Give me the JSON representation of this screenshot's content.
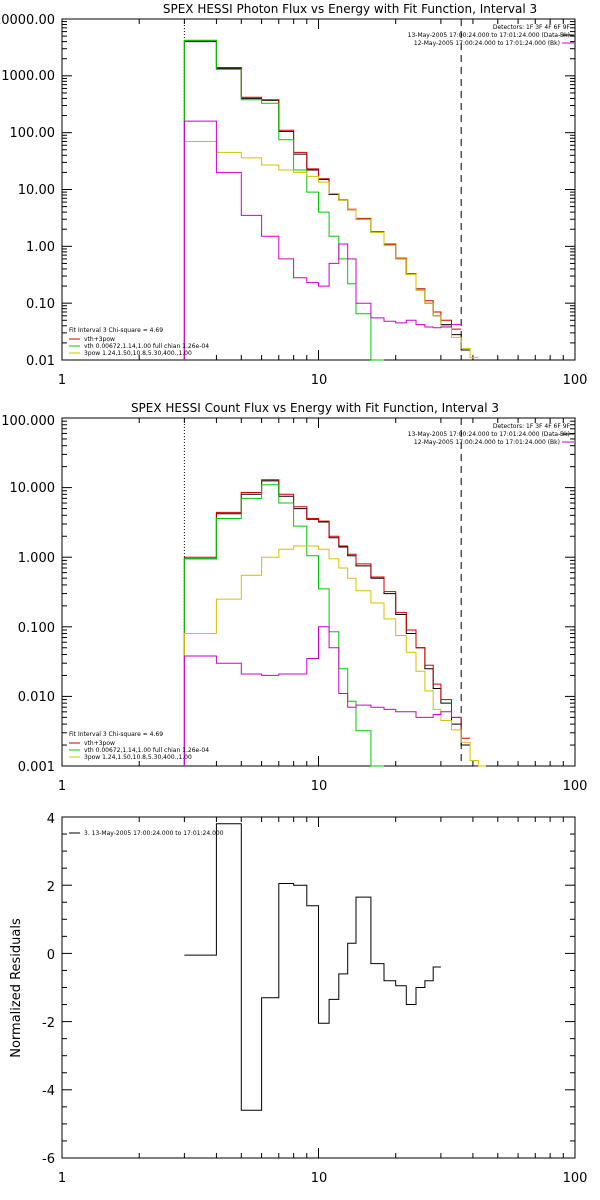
{
  "chart_data": [
    {
      "type": "line",
      "title": "SPEX HESSI Photon Flux vs Energy with Fit Function, Interval 3",
      "xscale": "log",
      "yscale": "log",
      "xlim": [
        1,
        100
      ],
      "ylim": [
        0.01,
        10000
      ],
      "x_tick_labels": [
        "1",
        "10",
        "100"
      ],
      "y_tick_labels": [
        "0.01",
        "0.10",
        "1.00",
        "10.00",
        "100.00",
        "1000.00",
        "10000.00"
      ],
      "header": [
        "Detectors: 1F 3F 4F 6F 9F",
        "13-May-2005 17:00:24.000 to 17:01:24.000 (Data-Bk)",
        "12-May-2005 17:00:24.000 to 17:01:24.000 (Bk)"
      ],
      "annotation": [
        "Fit Interval 3   Chi-square = 4.69",
        "vth+3pow",
        "vth 0.00672,1.14,1.00  full chian 1.26e-04",
        "3pow 1.24,1.50,10.8,5.30,400.,1.00"
      ],
      "vlines": [
        {
          "x": 3,
          "style": "dotted"
        },
        {
          "x": 36,
          "style": "dashed"
        }
      ],
      "edges": [
        3,
        4,
        5,
        6,
        7,
        8,
        9,
        10,
        11,
        12,
        13,
        14,
        16,
        18,
        20,
        22,
        24,
        26,
        28,
        30,
        33,
        36,
        39,
        42,
        45
      ],
      "series": [
        {
          "name": "Data-Bk",
          "color": "#000000",
          "values": [
            4000,
            1350,
            400,
            370,
            105,
            42,
            22,
            15,
            8.2,
            6.5,
            4.4,
            3,
            1.75,
            1.05,
            0.6,
            0.32,
            0.17,
            0.1,
            0.06,
            0.042,
            0.028,
            0.015,
            null,
            null
          ]
        },
        {
          "name": "vth+3pow",
          "color": "#cc0000",
          "values": [
            4200,
            1400,
            420,
            380,
            110,
            45,
            23,
            15.5,
            8.5,
            6.6,
            4.5,
            3.1,
            1.8,
            1.1,
            0.62,
            0.33,
            0.18,
            0.11,
            0.07,
            0.05,
            0.035,
            null,
            null,
            null
          ]
        },
        {
          "name": "vth",
          "color": "#00c800",
          "values": [
            4200,
            1300,
            380,
            330,
            75,
            22,
            9,
            4,
            1.5,
            0.6,
            0.22,
            0.065,
            0.01,
            null,
            null,
            null,
            null,
            null,
            null,
            null,
            null,
            null,
            null,
            null
          ]
        },
        {
          "name": "3pow",
          "color": "#d4c000",
          "values": [
            70,
            45,
            36,
            27,
            22,
            20,
            17,
            13.5,
            8.5,
            6.5,
            4.4,
            3,
            1.75,
            1.05,
            0.6,
            0.32,
            0.17,
            0.1,
            0.06,
            0.04,
            0.025,
            0.016,
            0.011,
            null
          ]
        },
        {
          "name": "Bk",
          "color": "#cc00cc",
          "values": [
            160,
            20,
            3.5,
            1.5,
            0.6,
            0.28,
            0.23,
            0.2,
            0.5,
            1.1,
            0.6,
            0.1,
            0.055,
            0.048,
            0.045,
            0.05,
            0.042,
            0.038,
            0.037,
            0.038,
            0.042,
            null,
            null,
            null
          ]
        }
      ]
    },
    {
      "type": "line",
      "title": "SPEX HESSI Count Flux vs Energy with Fit Function, Interval 3",
      "xscale": "log",
      "yscale": "log",
      "xlim": [
        1,
        100
      ],
      "ylim": [
        0.001,
        100
      ],
      "x_tick_labels": [
        "1",
        "10",
        "100"
      ],
      "y_tick_labels": [
        "0.001",
        "0.010",
        "0.100",
        "1.000",
        "10.000",
        "100.000"
      ],
      "header": [
        "Detectors: 1F 3F 4F 6F 9F",
        "13-May-2005 17:00:24.000 to 17:01:24.000 (Data-Bk)",
        "12-May-2005 17:00:24.000 to 17:01:24.000 (Bk)"
      ],
      "annotation": [
        "Fit Interval 3   Chi-square = 4.69",
        "vth+3pow",
        "vth 0.00672,1.14,1.00  full chian 1.26e-04",
        "3pow 1.24,1.50,10.8,5.30,400.,1.00"
      ],
      "vlines": [
        {
          "x": 3,
          "style": "dotted"
        },
        {
          "x": 36,
          "style": "dashed"
        }
      ],
      "edges": [
        3,
        4,
        5,
        6,
        7,
        8,
        9,
        10,
        11,
        12,
        13,
        14,
        16,
        18,
        20,
        22,
        24,
        26,
        28,
        30,
        33,
        36,
        39,
        42,
        45
      ],
      "series": [
        {
          "name": "Data-Bk",
          "color": "#000000",
          "values": [
            0.95,
            4.2,
            8,
            12.5,
            7.5,
            5,
            3.5,
            3.2,
            1.9,
            1.4,
            1.05,
            0.75,
            0.5,
            0.3,
            0.15,
            0.08,
            0.05,
            0.025,
            0.013,
            0.008,
            0.004,
            0.002,
            null,
            null
          ]
        },
        {
          "name": "vth+3pow",
          "color": "#cc0000",
          "values": [
            1.0,
            4.4,
            8.5,
            13,
            8,
            5.3,
            3.6,
            3.3,
            2,
            1.45,
            1.1,
            0.8,
            0.52,
            0.32,
            0.16,
            0.09,
            0.05,
            0.028,
            0.015,
            0.009,
            0.005,
            0.0025,
            null,
            null
          ]
        },
        {
          "name": "vth",
          "color": "#00c800",
          "values": [
            0.95,
            3.6,
            7,
            11,
            6,
            2.8,
            1.05,
            0.35,
            0.085,
            0.025,
            0.0085,
            0.0032,
            0.001,
            null,
            null,
            null,
            null,
            null,
            null,
            null,
            null,
            null,
            null,
            null
          ]
        },
        {
          "name": "3pow",
          "color": "#d4c000",
          "values": [
            0.08,
            0.25,
            0.55,
            1.0,
            1.3,
            1.45,
            1.45,
            1.3,
            0.95,
            0.7,
            0.5,
            0.33,
            0.22,
            0.13,
            0.075,
            0.043,
            0.023,
            0.012,
            0.0065,
            0.0045,
            0.0033,
            0.0022,
            0.0012,
            0.001
          ]
        },
        {
          "name": "Bk",
          "color": "#cc00cc",
          "values": [
            0.038,
            0.03,
            0.021,
            0.02,
            0.021,
            0.021,
            0.035,
            0.1,
            0.05,
            0.011,
            0.007,
            0.0075,
            0.007,
            0.0065,
            0.006,
            0.006,
            0.005,
            0.005,
            0.0055,
            0.006,
            0.005,
            null,
            null,
            null
          ]
        }
      ]
    },
    {
      "type": "line",
      "title": "",
      "xscale": "log",
      "yscale": "linear",
      "xlim": [
        1,
        100
      ],
      "ylim": [
        -6,
        4
      ],
      "x_tick_labels": [
        "1",
        "10",
        "100"
      ],
      "y_tick_labels": [
        "-6",
        "-4",
        "-2",
        "0",
        "2",
        "4"
      ],
      "ylabel": "Normalized Residuals",
      "legend": [
        "3. 13-May-2005 17:00:24.000 to 17:01:24.000"
      ],
      "edges": [
        3,
        4,
        5,
        6,
        7,
        8,
        9,
        10,
        11,
        12,
        13,
        14,
        16,
        18,
        20,
        22,
        24,
        26,
        28,
        30,
        33,
        36
      ],
      "series": [
        {
          "name": "residuals",
          "color": "#000000",
          "values": [
            -0.05,
            3.8,
            -4.6,
            -1.3,
            2.05,
            2.0,
            1.4,
            -2.05,
            -1.35,
            -0.6,
            0.3,
            1.65,
            -0.3,
            -0.8,
            -0.95,
            -1.5,
            -1.0,
            -0.8,
            -0.4,
            null,
            null
          ]
        }
      ]
    }
  ]
}
